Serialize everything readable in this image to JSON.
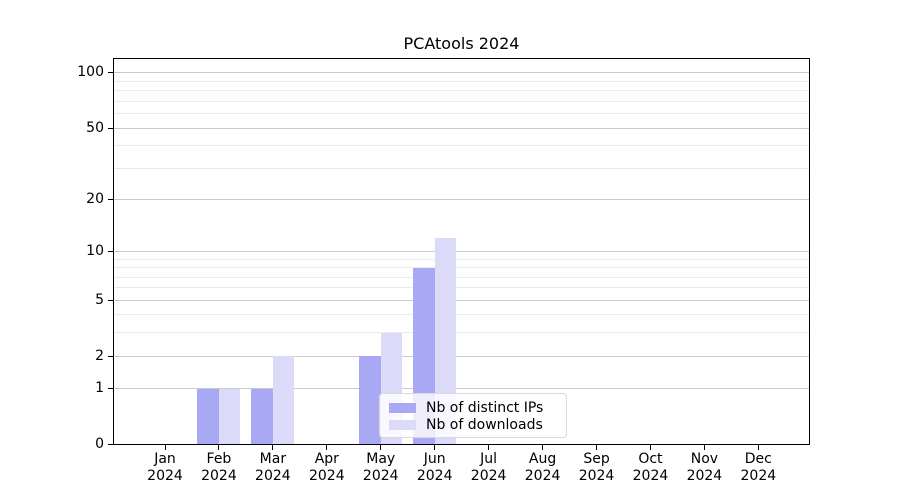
{
  "chart_data": {
    "type": "bar",
    "title": "PCAtools 2024",
    "x_categories": [
      "Jan",
      "Feb",
      "Mar",
      "Apr",
      "May",
      "Jun",
      "Jul",
      "Aug",
      "Sep",
      "Oct",
      "Nov",
      "Dec"
    ],
    "x_year_label": "2024",
    "series": [
      {
        "name": "Nb of distinct IPs",
        "color": "#a8a8f4",
        "values": [
          0,
          1,
          1,
          0,
          2,
          8,
          0,
          0,
          0,
          0,
          0,
          0
        ]
      },
      {
        "name": "Nb of downloads",
        "color": "#dbdbf9",
        "values": [
          0,
          1,
          2,
          0,
          3,
          12,
          0,
          0,
          0,
          0,
          0,
          0
        ]
      }
    ],
    "y_axis": {
      "scale": "log10(1+value)",
      "range": [
        0,
        100
      ],
      "ticks": [
        0,
        1,
        2,
        5,
        10,
        20,
        50,
        100
      ],
      "tick_labels": [
        "0",
        "1",
        "2",
        "5",
        "10",
        "20",
        "50",
        "100"
      ],
      "minor_gridlines": [
        3,
        4,
        6,
        7,
        8,
        9,
        30,
        40,
        60,
        70,
        80,
        90
      ]
    },
    "grid": "horizontal",
    "legend": {
      "entries": [
        "Nb of distinct IPs",
        "Nb of downloads"
      ],
      "position": "inside-bottom-center"
    }
  },
  "colors": {
    "background": "#ffffff",
    "axis": "#000000",
    "grid_major": "#c9c9c9",
    "grid_minor": "#ebebeb",
    "legend_border": "#d9d9d9",
    "legend_background": "rgba(255,255,255,0.8)"
  }
}
